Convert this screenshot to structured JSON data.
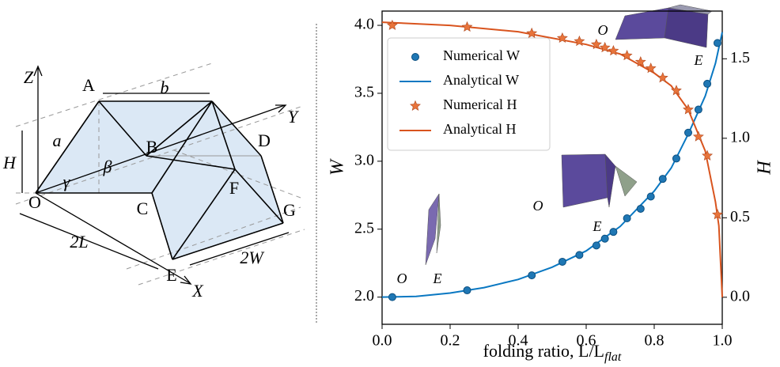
{
  "chart_data": {
    "type": "line",
    "xlabel": "folding ratio, L/L",
    "xlabel_sub": "flat",
    "ylabel": "W",
    "y2label": "H",
    "xlim": [
      0,
      1
    ],
    "ylim": [
      1.8,
      4.105
    ],
    "y2lim": [
      -0.17,
      1.8
    ],
    "xticks": [
      {
        "value": 0,
        "label": "0.0"
      },
      {
        "value": 0.2,
        "label": "0.2"
      },
      {
        "value": 0.4,
        "label": "0.4"
      },
      {
        "value": 0.6,
        "label": "0.6"
      },
      {
        "value": 0.8,
        "label": "0.8"
      },
      {
        "value": 1,
        "label": "1.0"
      }
    ],
    "yticks": [
      {
        "value": 2,
        "label": "2.0"
      },
      {
        "value": 2.5,
        "label": "2.5"
      },
      {
        "value": 3,
        "label": "3.0"
      },
      {
        "value": 3.5,
        "label": "3.5"
      },
      {
        "value": 4,
        "label": "4.0"
      }
    ],
    "y2ticks": [
      {
        "value": 0,
        "label": "0.0"
      },
      {
        "value": 0.5,
        "label": "0.5"
      },
      {
        "value": 1,
        "label": "1.0"
      },
      {
        "value": 1.5,
        "label": "1.5"
      }
    ],
    "legend": "upper left",
    "series": [
      {
        "name": "Numerical W",
        "color": "#1f77b4",
        "marker": "circle",
        "axis": "y",
        "x": [
          0.03,
          0.25,
          0.44,
          0.53,
          0.58,
          0.63,
          0.655,
          0.68,
          0.72,
          0.76,
          0.79,
          0.825,
          0.865,
          0.9,
          0.93,
          0.956,
          0.986
        ],
        "values": [
          2.0,
          2.05,
          2.16,
          2.26,
          2.31,
          2.38,
          2.43,
          2.48,
          2.58,
          2.65,
          2.74,
          2.87,
          3.02,
          3.21,
          3.38,
          3.57,
          3.87
        ]
      },
      {
        "name": "Analytical W",
        "color": "#0a78c2",
        "marker": "line",
        "axis": "y",
        "x": [
          0,
          0.1,
          0.2,
          0.3,
          0.4,
          0.5,
          0.6,
          0.7,
          0.8,
          0.85,
          0.9,
          0.95,
          0.98,
          1.0
        ],
        "values": [
          2.0,
          2.005,
          2.03,
          2.07,
          2.13,
          2.22,
          2.34,
          2.52,
          2.78,
          2.95,
          3.2,
          3.48,
          3.72,
          3.95
        ]
      },
      {
        "name": "Numerical H",
        "color": "#e8743b",
        "marker": "star",
        "axis": "y2",
        "x": [
          0.03,
          0.25,
          0.44,
          0.53,
          0.58,
          0.63,
          0.655,
          0.68,
          0.72,
          0.76,
          0.79,
          0.825,
          0.865,
          0.9,
          0.93,
          0.956,
          0.986
        ],
        "values": [
          1.71,
          1.7,
          1.66,
          1.63,
          1.61,
          1.59,
          1.57,
          1.55,
          1.52,
          1.48,
          1.44,
          1.38,
          1.3,
          1.18,
          1.01,
          0.89,
          0.52
        ]
      },
      {
        "name": "Analytical H",
        "color": "#d9541e",
        "marker": "line",
        "axis": "y2",
        "x": [
          0,
          0.2,
          0.4,
          0.6,
          0.7,
          0.8,
          0.85,
          0.9,
          0.95,
          0.98,
          0.99,
          1.0
        ],
        "values": [
          1.73,
          1.71,
          1.67,
          1.59,
          1.53,
          1.41,
          1.33,
          1.18,
          0.92,
          0.6,
          0.45,
          0
        ]
      }
    ],
    "annotations": [
      "O",
      "E",
      "O",
      "E",
      "O",
      "E"
    ]
  },
  "diagram": {
    "labels": [
      "Z",
      "A",
      "b",
      "Y",
      "a",
      "B",
      "D",
      "H",
      "γ",
      "β",
      "O",
      "C",
      "F",
      "G",
      "2L",
      "2W",
      "E",
      "X"
    ]
  }
}
